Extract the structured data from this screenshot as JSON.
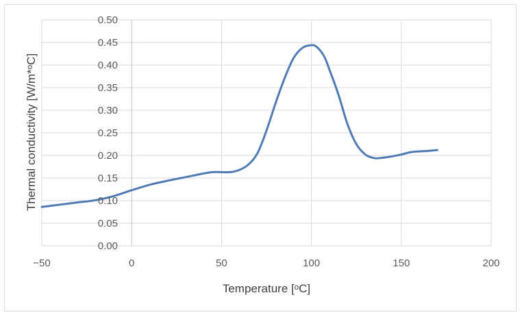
{
  "chart_data": {
    "type": "line",
    "title": "",
    "xlabel": "Temperature [ᵒC]",
    "ylabel": "Thermal  conductivity [W/m*ᵒC]",
    "xlim": [
      -50,
      200
    ],
    "ylim": [
      0,
      0.5
    ],
    "x_ticks": [
      -50,
      0,
      50,
      100,
      150,
      200
    ],
    "x_tick_labels": [
      "−50",
      "0",
      "50",
      "100",
      "150",
      "200"
    ],
    "y_ticks": [
      0,
      0.05,
      0.1,
      0.15,
      0.2,
      0.25,
      0.3,
      0.35,
      0.4,
      0.45,
      0.5
    ],
    "y_tick_labels": [
      "0.00",
      "0.05",
      "0.10",
      "0.15",
      "0.20",
      "0.25",
      "0.30",
      "0.35",
      "0.40",
      "0.45",
      "0.50"
    ],
    "grid": "vertical",
    "legend": "none",
    "series": [
      {
        "color": "#4f7ab3",
        "x": [
          -50,
          -40,
          -30,
          -20,
          -10,
          0,
          10,
          20,
          30,
          40,
          45,
          50,
          55,
          60,
          65,
          70,
          75,
          80,
          85,
          90,
          95,
          100,
          103,
          107,
          110,
          115,
          120,
          125,
          130,
          135,
          140,
          145,
          150,
          155,
          160,
          165,
          170
        ],
        "y": [
          0.086,
          0.091,
          0.096,
          0.101,
          0.11,
          0.123,
          0.135,
          0.144,
          0.152,
          0.16,
          0.163,
          0.163,
          0.163,
          0.168,
          0.18,
          0.205,
          0.255,
          0.315,
          0.37,
          0.415,
          0.438,
          0.444,
          0.44,
          0.42,
          0.39,
          0.335,
          0.27,
          0.225,
          0.202,
          0.194,
          0.195,
          0.198,
          0.202,
          0.207,
          0.209,
          0.21,
          0.212
        ]
      }
    ]
  }
}
